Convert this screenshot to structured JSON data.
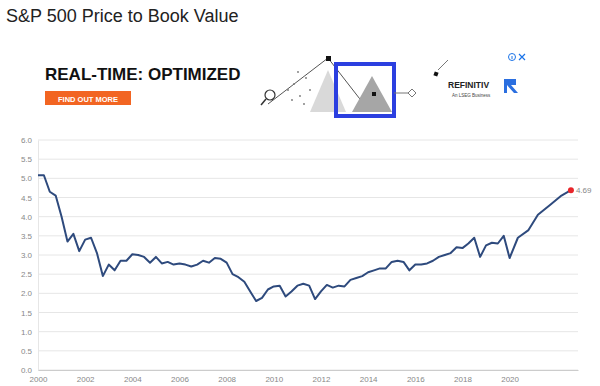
{
  "banner": {
    "headline": "REAL-TIME: OPTIMIZED",
    "button": "FIND OUT MORE",
    "brand": "REFINITIV",
    "tagline": "An LSEG Business"
  },
  "chart_data": {
    "type": "line",
    "title": "S&P 500 Price to Book Value",
    "x": [
      2000,
      2000.25,
      2000.5,
      2000.75,
      2001,
      2001.25,
      2001.5,
      2001.75,
      2002,
      2002.25,
      2002.5,
      2002.75,
      2003,
      2003.25,
      2003.5,
      2003.75,
      2004,
      2004.25,
      2004.5,
      2004.75,
      2005,
      2005.25,
      2005.5,
      2005.75,
      2006,
      2006.25,
      2006.5,
      2006.75,
      2007,
      2007.25,
      2007.5,
      2007.75,
      2008,
      2008.25,
      2008.5,
      2008.75,
      2009,
      2009.25,
      2009.5,
      2009.75,
      2010,
      2010.25,
      2010.5,
      2010.75,
      2011,
      2011.25,
      2011.5,
      2011.75,
      2012,
      2012.25,
      2012.5,
      2012.75,
      2013,
      2013.25,
      2013.5,
      2013.75,
      2014,
      2014.25,
      2014.5,
      2014.75,
      2015,
      2015.25,
      2015.5,
      2015.75,
      2016,
      2016.25,
      2016.5,
      2016.75,
      2017,
      2017.25,
      2017.5,
      2017.75,
      2018,
      2018.25,
      2018.5,
      2018.75,
      2019,
      2019.25,
      2019.5,
      2019.75,
      2020,
      2020.35,
      2020.8,
      2021.2,
      2021.7,
      2022.2,
      2022.6
    ],
    "values": [
      5.08,
      5.08,
      4.65,
      4.55,
      4.0,
      3.35,
      3.55,
      3.1,
      3.4,
      3.45,
      3.05,
      2.45,
      2.75,
      2.6,
      2.85,
      2.85,
      3.02,
      3.0,
      2.95,
      2.8,
      2.95,
      2.78,
      2.82,
      2.75,
      2.78,
      2.75,
      2.7,
      2.75,
      2.85,
      2.8,
      2.92,
      2.9,
      2.8,
      2.5,
      2.42,
      2.3,
      2.05,
      1.8,
      1.88,
      2.1,
      2.18,
      2.2,
      1.92,
      2.05,
      2.2,
      2.25,
      2.2,
      1.85,
      2.05,
      2.22,
      2.15,
      2.2,
      2.18,
      2.35,
      2.4,
      2.45,
      2.55,
      2.6,
      2.65,
      2.65,
      2.82,
      2.85,
      2.82,
      2.6,
      2.75,
      2.75,
      2.78,
      2.85,
      2.95,
      3.0,
      3.05,
      3.2,
      3.18,
      3.3,
      3.45,
      2.95,
      3.25,
      3.32,
      3.3,
      3.5,
      2.92,
      3.45,
      3.65,
      4.05,
      4.3,
      4.55,
      4.69
    ],
    "color": "#2e4a7d",
    "xlim": [
      2000,
      2022.9
    ],
    "xticks": [
      2000,
      2002,
      2004,
      2006,
      2008,
      2010,
      2012,
      2014,
      2016,
      2018,
      2020
    ],
    "ylim": [
      0,
      6
    ],
    "yticks": [
      {
        "value": 0,
        "label": "0.0"
      },
      0.5,
      {
        "value": 1,
        "label": "1.0"
      },
      1.5,
      {
        "value": 2,
        "label": "2.0"
      },
      2.5,
      {
        "value": 3,
        "label": "3.0"
      },
      3.5,
      {
        "value": 4,
        "label": "4.0"
      },
      4.5,
      {
        "value": 5,
        "label": "5.0"
      },
      5.5,
      {
        "value": 6,
        "label": "6.0"
      }
    ],
    "grid": true,
    "annotations": [
      {
        "x": 2022.6,
        "value": 4.69,
        "color": "#e8252a"
      }
    ]
  }
}
